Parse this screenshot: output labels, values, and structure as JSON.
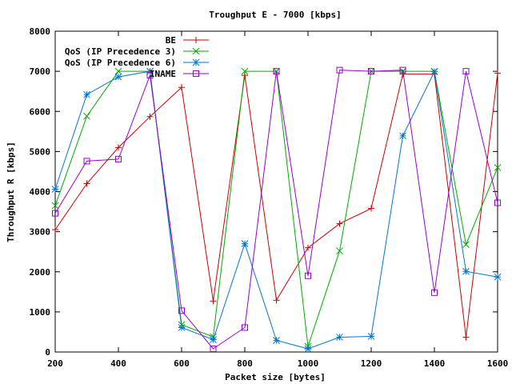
{
  "chart_data": {
    "type": "line",
    "title": "Troughput E - 7000 [kbps]",
    "xlabel": "Packet size [bytes]",
    "ylabel": "Throughput R [kbps]",
    "xlim": [
      200,
      1600
    ],
    "ylim": [
      0,
      8000
    ],
    "xticks": [
      200,
      400,
      600,
      800,
      1000,
      1200,
      1400,
      1600
    ],
    "yticks": [
      0,
      1000,
      2000,
      3000,
      4000,
      5000,
      6000,
      7000,
      8000
    ],
    "grid": false,
    "legend_position": "top-left",
    "x": [
      200,
      300,
      400,
      500,
      600,
      700,
      800,
      900,
      1000,
      1100,
      1200,
      1300,
      1400,
      1500,
      1600
    ],
    "series": [
      {
        "name": "BE",
        "color": "#cc0000",
        "marker": "plus",
        "values": [
          3050,
          4200,
          5100,
          5870,
          6600,
          1270,
          6900,
          1290,
          2600,
          3200,
          3580,
          6930,
          6930,
          370,
          6950
        ]
      },
      {
        "name": "QoS (IP Precedence 3)",
        "color": "#00aa00",
        "marker": "cross",
        "values": [
          3650,
          5880,
          7000,
          7000,
          680,
          380,
          7000,
          7000,
          140,
          2520,
          7000,
          7000,
          7000,
          2680,
          4600
        ]
      },
      {
        "name": "QoS (IP Precedence 6)",
        "color": "#0077cc",
        "marker": "star",
        "values": [
          4060,
          6420,
          6860,
          7000,
          610,
          310,
          2700,
          290,
          80,
          370,
          390,
          5390,
          6990,
          2010,
          1870
        ]
      },
      {
        "name": "INAME",
        "color": "#9900cc",
        "marker": "square",
        "values": [
          3460,
          4760,
          4810,
          6900,
          1030,
          80,
          610,
          7000,
          1900,
          7030,
          7000,
          7030,
          1480,
          7000,
          3720
        ]
      }
    ]
  }
}
